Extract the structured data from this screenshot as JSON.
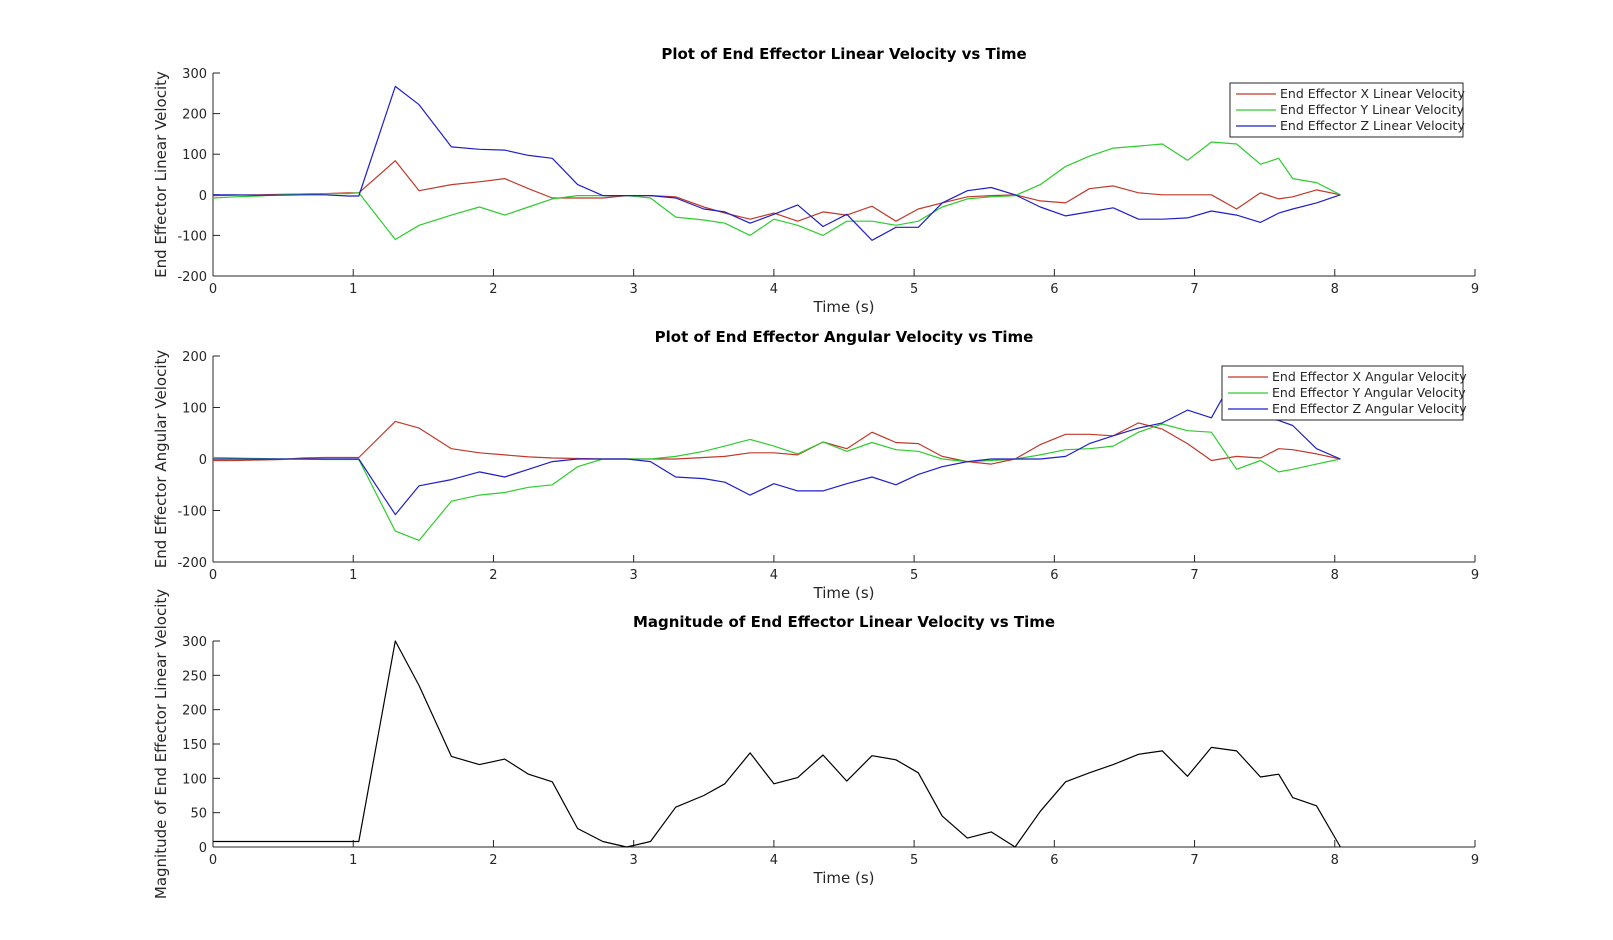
{
  "chart_data": [
    {
      "type": "line",
      "title": "Plot of End Effector Linear Velocity vs Time",
      "xlabel": "Time (s)",
      "ylabel": "End Effector Linear Velocity",
      "xlim": [
        0,
        9
      ],
      "ylim": [
        -200,
        300
      ],
      "xticks": [
        0,
        1,
        2,
        3,
        4,
        5,
        6,
        7,
        8,
        9
      ],
      "yticks": [
        -200,
        -100,
        0,
        100,
        200,
        300
      ],
      "legend_position": "top-right",
      "series": [
        {
          "name": "End Effector X Linear Velocity",
          "color": "#c0392b",
          "x": [
            0,
            0.16,
            0.32,
            0.48,
            0.64,
            0.8,
            0.96,
            1.04,
            1.3,
            1.47,
            1.7,
            1.9,
            2.08,
            2.25,
            2.42,
            2.6,
            2.78,
            2.95,
            3.12,
            3.3,
            3.5,
            3.65,
            3.83,
            4.0,
            4.17,
            4.35,
            4.52,
            4.7,
            4.87,
            5.03,
            5.2,
            5.38,
            5.55,
            5.72,
            5.9,
            6.08,
            6.25,
            6.42,
            6.6,
            6.77,
            6.95,
            7.12,
            7.3,
            7.47,
            7.6,
            7.7,
            7.87,
            8.04
          ],
          "y": [
            -2,
            -1,
            0,
            1,
            2,
            3,
            5,
            5,
            84,
            10,
            25,
            32,
            40,
            15,
            -8,
            -8,
            -8,
            -2,
            -2,
            -5,
            -30,
            -45,
            -60,
            -45,
            -65,
            -42,
            -50,
            -28,
            -65,
            -35,
            -20,
            -5,
            -2,
            0,
            -15,
            -20,
            15,
            22,
            5,
            0,
            0,
            0,
            -35,
            5,
            -10,
            -5,
            12,
            0
          ]
        },
        {
          "name": "End Effector Y Linear Velocity",
          "color": "#2ecc2e",
          "x": [
            0,
            0.16,
            0.32,
            0.48,
            0.64,
            0.8,
            0.96,
            1.04,
            1.3,
            1.47,
            1.7,
            1.9,
            2.08,
            2.25,
            2.42,
            2.6,
            2.78,
            2.95,
            3.12,
            3.3,
            3.5,
            3.65,
            3.83,
            4.0,
            4.17,
            4.35,
            4.52,
            4.7,
            4.87,
            5.03,
            5.2,
            5.38,
            5.55,
            5.72,
            5.9,
            6.08,
            6.25,
            6.42,
            6.6,
            6.77,
            6.95,
            7.12,
            7.3,
            7.47,
            7.6,
            7.7,
            7.87,
            8.04
          ],
          "y": [
            -8,
            -5,
            -3,
            0,
            2,
            3,
            3,
            5,
            -110,
            -75,
            -50,
            -30,
            -50,
            -30,
            -10,
            -2,
            -2,
            -2,
            -8,
            -55,
            -62,
            -70,
            -100,
            -60,
            -75,
            -100,
            -65,
            -65,
            -75,
            -65,
            -30,
            -10,
            -5,
            -2,
            25,
            70,
            95,
            115,
            120,
            125,
            85,
            130,
            125,
            75,
            90,
            40,
            30,
            0
          ]
        },
        {
          "name": "End Effector Z Linear Velocity",
          "color": "#1f1fc8",
          "x": [
            0,
            0.16,
            0.32,
            0.48,
            0.64,
            0.8,
            0.96,
            1.04,
            1.3,
            1.47,
            1.7,
            1.9,
            2.08,
            2.25,
            2.42,
            2.6,
            2.78,
            2.95,
            3.12,
            3.3,
            3.5,
            3.65,
            3.83,
            4.0,
            4.17,
            4.35,
            4.52,
            4.7,
            4.87,
            5.03,
            5.2,
            5.38,
            5.55,
            5.72,
            5.9,
            6.08,
            6.25,
            6.42,
            6.6,
            6.77,
            6.95,
            7.12,
            7.3,
            7.47,
            7.6,
            7.7,
            7.87,
            8.04
          ],
          "y": [
            0,
            0,
            -1,
            -1,
            0,
            0,
            -3,
            -3,
            267,
            222,
            118,
            112,
            110,
            97,
            90,
            25,
            -2,
            -2,
            -2,
            -8,
            -35,
            -42,
            -70,
            -48,
            -25,
            -78,
            -48,
            -112,
            -80,
            -80,
            -20,
            10,
            18,
            0,
            -30,
            -52,
            -42,
            -32,
            -60,
            -60,
            -57,
            -40,
            -50,
            -68,
            -45,
            -35,
            -20,
            0
          ]
        }
      ]
    },
    {
      "type": "line",
      "title": "Plot of End Effector Angular Velocity vs Time",
      "xlabel": "Time (s)",
      "ylabel": "End Effector Angular Velocity",
      "xlim": [
        0,
        9
      ],
      "ylim": [
        -200,
        200
      ],
      "xticks": [
        0,
        1,
        2,
        3,
        4,
        5,
        6,
        7,
        8,
        9
      ],
      "yticks": [
        -200,
        -100,
        0,
        100,
        200
      ],
      "legend_position": "top-right",
      "series": [
        {
          "name": "End Effector X Angular Velocity",
          "color": "#c0392b",
          "x": [
            0,
            0.16,
            0.32,
            0.48,
            0.64,
            0.8,
            0.96,
            1.04,
            1.3,
            1.47,
            1.7,
            1.9,
            2.08,
            2.25,
            2.42,
            2.6,
            2.78,
            2.95,
            3.12,
            3.3,
            3.5,
            3.65,
            3.83,
            4.0,
            4.17,
            4.35,
            4.52,
            4.7,
            4.87,
            5.03,
            5.2,
            5.38,
            5.55,
            5.72,
            5.9,
            6.08,
            6.25,
            6.42,
            6.6,
            6.77,
            6.95,
            7.12,
            7.3,
            7.47,
            7.6,
            7.7,
            7.87,
            8.04
          ],
          "y": [
            -3,
            -3,
            -2,
            -1,
            2,
            3,
            3,
            3,
            73,
            60,
            20,
            12,
            8,
            4,
            2,
            1,
            0,
            0,
            0,
            0,
            3,
            5,
            12,
            12,
            8,
            33,
            20,
            52,
            32,
            30,
            5,
            -5,
            -10,
            0,
            28,
            48,
            48,
            45,
            70,
            58,
            30,
            -3,
            5,
            2,
            20,
            18,
            10,
            0
          ]
        },
        {
          "name": "End Effector Y Angular Velocity",
          "color": "#2ecc2e",
          "x": [
            0,
            0.16,
            0.32,
            0.48,
            0.64,
            0.8,
            0.96,
            1.04,
            1.3,
            1.47,
            1.7,
            1.9,
            2.08,
            2.25,
            2.42,
            2.6,
            2.78,
            2.95,
            3.12,
            3.3,
            3.5,
            3.65,
            3.83,
            4.0,
            4.17,
            4.35,
            4.52,
            4.7,
            4.87,
            5.03,
            5.2,
            5.38,
            5.55,
            5.72,
            5.9,
            6.08,
            6.25,
            6.42,
            6.6,
            6.77,
            6.95,
            7.12,
            7.3,
            7.47,
            7.6,
            7.7,
            7.87,
            8.04
          ],
          "y": [
            3,
            2,
            1,
            0,
            0,
            -1,
            -1,
            -1,
            -140,
            -158,
            -82,
            -70,
            -65,
            -55,
            -50,
            -15,
            0,
            0,
            0,
            5,
            15,
            25,
            38,
            25,
            10,
            33,
            15,
            32,
            18,
            15,
            0,
            -5,
            -3,
            0,
            8,
            18,
            20,
            25,
            52,
            68,
            55,
            52,
            -20,
            -3,
            -25,
            -20,
            -10,
            0
          ]
        },
        {
          "name": "End Effector Z Angular Velocity",
          "color": "#1f1fc8",
          "x": [
            0,
            0.16,
            0.32,
            0.48,
            0.64,
            0.8,
            0.96,
            1.04,
            1.3,
            1.47,
            1.7,
            1.9,
            2.08,
            2.25,
            2.42,
            2.6,
            2.78,
            2.95,
            3.12,
            3.3,
            3.5,
            3.65,
            3.83,
            4.0,
            4.17,
            4.35,
            4.52,
            4.7,
            4.87,
            5.03,
            5.2,
            5.38,
            5.55,
            5.72,
            5.9,
            6.08,
            6.25,
            6.42,
            6.6,
            6.77,
            6.95,
            7.12,
            7.3,
            7.47,
            7.6,
            7.7,
            7.87,
            8.04
          ],
          "y": [
            0,
            0,
            0,
            0,
            0,
            0,
            0,
            0,
            -108,
            -52,
            -40,
            -25,
            -35,
            -20,
            -5,
            0,
            0,
            0,
            -5,
            -35,
            -38,
            -45,
            -70,
            -48,
            -62,
            -62,
            -48,
            -35,
            -50,
            -30,
            -15,
            -5,
            0,
            0,
            0,
            5,
            30,
            45,
            60,
            70,
            95,
            80,
            168,
            80,
            75,
            65,
            20,
            0
          ]
        }
      ]
    },
    {
      "type": "line",
      "title": "Magnitude of End Effector Linear Velocity vs Time",
      "xlabel": "Time (s)",
      "ylabel": "Magnitude of End Effector Linear Velocity",
      "xlim": [
        0,
        9
      ],
      "ylim": [
        0,
        300
      ],
      "xticks": [
        0,
        1,
        2,
        3,
        4,
        5,
        6,
        7,
        8,
        9
      ],
      "yticks": [
        0,
        50,
        100,
        150,
        200,
        250,
        300
      ],
      "series": [
        {
          "color": "#000000",
          "x": [
            0,
            0.16,
            0.32,
            0.48,
            0.64,
            0.8,
            0.96,
            1.04,
            1.3,
            1.47,
            1.7,
            1.9,
            2.08,
            2.25,
            2.42,
            2.6,
            2.78,
            2.95,
            3.12,
            3.3,
            3.5,
            3.65,
            3.83,
            4.0,
            4.17,
            4.35,
            4.52,
            4.7,
            4.87,
            5.03,
            5.2,
            5.38,
            5.55,
            5.72,
            5.9,
            6.08,
            6.25,
            6.42,
            6.6,
            6.77,
            6.95,
            7.12,
            7.3,
            7.47,
            7.6,
            7.7,
            7.87,
            8.04
          ],
          "y": [
            8,
            8,
            8,
            8,
            8,
            8,
            8,
            8,
            300,
            235,
            132,
            120,
            128,
            106,
            95,
            27,
            8,
            0,
            8,
            58,
            75,
            92,
            137,
            92,
            101,
            134,
            96,
            133,
            127,
            108,
            45,
            13,
            22,
            0,
            52,
            95,
            108,
            120,
            135,
            140,
            103,
            145,
            140,
            102,
            106,
            72,
            60,
            0
          ]
        }
      ]
    }
  ]
}
